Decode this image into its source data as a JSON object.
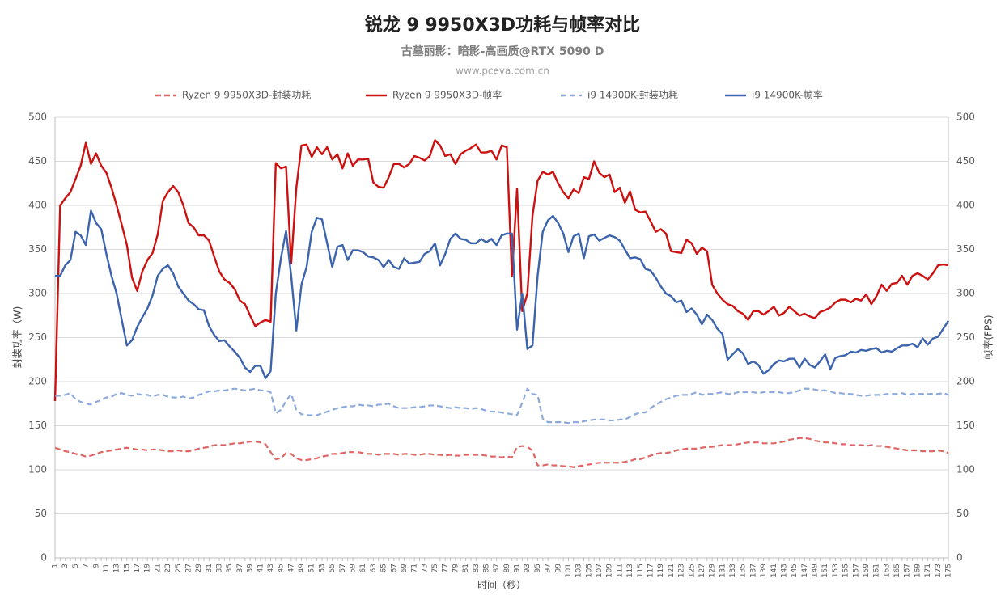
{
  "chart_data": {
    "type": "line",
    "title": "锐龙 9 9950X3D功耗与帧率对比",
    "subtitle": "古墓丽影：暗影-高画质@RTX 5090 D",
    "source": "www.pceva.com.cn",
    "x_label": "时间（秒）",
    "y_label": "封装功率（W)",
    "y2_label": "帧率(FPS)",
    "ylim": [
      0,
      500
    ],
    "yticks": [
      0,
      50,
      100,
      150,
      200,
      250,
      300,
      350,
      400,
      450,
      500
    ],
    "y2lim": [
      0,
      500
    ],
    "y2ticks": [
      0,
      50,
      100,
      150,
      200,
      250,
      300,
      350,
      400,
      450,
      500
    ],
    "grid": true,
    "legend": "top",
    "categories": [
      1,
      null,
      3,
      null,
      5,
      null,
      7,
      null,
      9,
      null,
      11,
      null,
      13,
      null,
      15,
      null,
      17,
      null,
      19,
      null,
      21,
      null,
      23,
      null,
      25,
      null,
      27,
      null,
      29,
      null,
      31,
      null,
      33,
      null,
      35,
      null,
      37,
      null,
      39,
      null,
      41,
      null,
      43,
      null,
      45,
      null,
      47,
      null,
      49,
      null,
      51,
      null,
      53,
      null,
      55,
      null,
      57,
      null,
      59,
      null,
      61,
      null,
      63,
      null,
      65,
      null,
      67,
      null,
      69,
      null,
      71,
      null,
      73,
      null,
      75,
      null,
      77,
      null,
      79,
      null,
      81,
      null,
      83,
      null,
      85,
      null,
      87,
      null,
      89,
      null,
      91,
      null,
      93,
      null,
      95,
      null,
      97,
      null,
      99,
      null,
      101,
      null,
      103,
      null,
      105,
      null,
      107,
      null,
      109,
      null,
      111,
      null,
      113,
      null,
      115,
      null,
      117,
      null,
      119,
      null,
      121,
      null,
      123,
      null,
      125,
      null,
      127,
      null,
      129,
      null,
      131,
      null,
      133,
      null,
      135,
      null,
      137,
      null,
      139,
      null,
      141,
      null,
      143,
      null,
      145,
      null,
      147,
      null,
      149,
      null,
      151,
      null,
      153,
      null,
      155,
      null,
      157,
      null,
      159,
      null,
      161,
      null,
      163,
      null,
      165,
      null,
      167,
      null,
      169,
      null,
      171,
      null,
      173,
      null,
      175
    ],
    "series": [
      {
        "name": "Ryzen 9 9950X3D-封装功耗",
        "color": "#e06666",
        "dashed": true,
        "axis": "y",
        "values": [
          125,
          123,
          121,
          120,
          118,
          117,
          115,
          116,
          118,
          120,
          121,
          122,
          123,
          124,
          125,
          124,
          123,
          123,
          122,
          123,
          123,
          122,
          121,
          121,
          122,
          121,
          121,
          122,
          124,
          125,
          126,
          128,
          128,
          128,
          129,
          130,
          130,
          131,
          132,
          132,
          131,
          129,
          120,
          112,
          113,
          119,
          118,
          113,
          111,
          111,
          112,
          113,
          115,
          116,
          118,
          118,
          119,
          120,
          120,
          120,
          119,
          118,
          118,
          117,
          118,
          118,
          118,
          117,
          118,
          118,
          117,
          117,
          118,
          118,
          117,
          117,
          116,
          117,
          116,
          116,
          117,
          117,
          117,
          117,
          116,
          115,
          115,
          114,
          115,
          114,
          126,
          127,
          126,
          122,
          105,
          105,
          106,
          105,
          105,
          104,
          104,
          103,
          104,
          105,
          106,
          107,
          108,
          108,
          108,
          108,
          108,
          109,
          110,
          112,
          112,
          114,
          116,
          118,
          119,
          119,
          120,
          122,
          123,
          124,
          124,
          124,
          125,
          126,
          126,
          127,
          128,
          128,
          128,
          129,
          130,
          131,
          131,
          131,
          130,
          130,
          130,
          131,
          132,
          134,
          135,
          136,
          136,
          135,
          133,
          132,
          131,
          131,
          130,
          129,
          129,
          128,
          128,
          128,
          127,
          128,
          127,
          127,
          126,
          125,
          124,
          123,
          122,
          122,
          122,
          121,
          121,
          121,
          122,
          121,
          119
        ]
      },
      {
        "name": "Ryzen 9 9950X3D-帧率",
        "color": "#cc1111",
        "dashed": false,
        "axis": "y2",
        "values": [
          178,
          400,
          408,
          415,
          430,
          445,
          471,
          447,
          459,
          445,
          437,
          420,
          400,
          378,
          355,
          318,
          303,
          325,
          338,
          346,
          367,
          405,
          415,
          422,
          415,
          400,
          380,
          375,
          366,
          366,
          360,
          342,
          325,
          316,
          312,
          305,
          292,
          288,
          275,
          263,
          267,
          270,
          268,
          448,
          442,
          444,
          334,
          420,
          468,
          469,
          455,
          466,
          458,
          466,
          452,
          458,
          442,
          459,
          445,
          452,
          452,
          453,
          426,
          421,
          420,
          432,
          447,
          447,
          443,
          447,
          456,
          454,
          451,
          456,
          474,
          468,
          456,
          458,
          447,
          458,
          462,
          465,
          469,
          460,
          460,
          462,
          452,
          468,
          466,
          320,
          419,
          280,
          300,
          388,
          428,
          438,
          435,
          438,
          425,
          415,
          408,
          418,
          414,
          432,
          430,
          450,
          437,
          432,
          435,
          415,
          420,
          403,
          416,
          395,
          392,
          393,
          382,
          370,
          373,
          368,
          348,
          347,
          346,
          361,
          357,
          345,
          352,
          348,
          310,
          300,
          293,
          288,
          286,
          280,
          277,
          270,
          280,
          280,
          276,
          280,
          285,
          275,
          278,
          285,
          280,
          275,
          277,
          274,
          272,
          279,
          281,
          284,
          290,
          293,
          293,
          290,
          294,
          292,
          299,
          288,
          297,
          310,
          303,
          311,
          312,
          320,
          310,
          320,
          323,
          320,
          316,
          323,
          332,
          333,
          332
        ]
      },
      {
        "name": "i9 14900K-封装功耗",
        "color": "#8eaadb",
        "dashed": true,
        "axis": "y",
        "values": [
          184,
          184,
          185,
          187,
          180,
          177,
          175,
          174,
          177,
          179,
          182,
          183,
          186,
          187,
          185,
          184,
          186,
          185,
          185,
          183,
          185,
          185,
          183,
          182,
          182,
          183,
          181,
          182,
          185,
          187,
          189,
          189,
          190,
          190,
          191,
          192,
          191,
          190,
          191,
          192,
          190,
          190,
          188,
          164,
          168,
          178,
          186,
          168,
          163,
          162,
          162,
          162,
          164,
          166,
          168,
          170,
          171,
          172,
          172,
          174,
          173,
          173,
          172,
          174,
          174,
          175,
          172,
          170,
          170,
          170,
          171,
          171,
          172,
          173,
          173,
          172,
          171,
          170,
          171,
          170,
          170,
          169,
          170,
          169,
          167,
          166,
          166,
          165,
          164,
          163,
          162,
          176,
          192,
          186,
          185,
          158,
          154,
          154,
          154,
          154,
          153,
          154,
          154,
          155,
          156,
          157,
          157,
          157,
          156,
          156,
          157,
          157,
          160,
          163,
          165,
          165,
          170,
          174,
          177,
          180,
          182,
          184,
          185,
          185,
          186,
          188,
          185,
          186,
          186,
          187,
          188,
          186,
          186,
          188,
          188,
          188,
          188,
          187,
          188,
          188,
          188,
          188,
          187,
          187,
          188,
          190,
          192,
          192,
          191,
          190,
          190,
          189,
          187,
          187,
          186,
          186,
          185,
          184,
          184,
          185,
          185,
          185,
          186,
          186,
          186,
          187,
          185,
          186,
          186,
          186,
          186,
          186,
          186,
          187,
          185
        ]
      },
      {
        "name": "i9 14900K-帧率",
        "color": "#3c64ad",
        "dashed": false,
        "axis": "y2",
        "values": [
          320,
          320,
          332,
          338,
          370,
          366,
          355,
          394,
          380,
          373,
          345,
          320,
          300,
          270,
          241,
          247,
          262,
          273,
          283,
          298,
          320,
          328,
          332,
          323,
          308,
          300,
          292,
          288,
          282,
          281,
          263,
          253,
          246,
          247,
          240,
          234,
          227,
          216,
          211,
          218,
          218,
          204,
          212,
          300,
          340,
          371,
          320,
          258,
          310,
          330,
          370,
          386,
          384,
          357,
          330,
          353,
          355,
          338,
          349,
          349,
          347,
          342,
          341,
          338,
          330,
          338,
          330,
          328,
          340,
          334,
          335,
          336,
          345,
          348,
          357,
          332,
          345,
          362,
          368,
          362,
          361,
          357,
          357,
          362,
          358,
          362,
          355,
          366,
          368,
          368,
          259,
          300,
          237,
          241,
          320,
          370,
          383,
          388,
          380,
          368,
          347,
          365,
          368,
          340,
          365,
          367,
          360,
          363,
          366,
          364,
          360,
          350,
          340,
          341,
          339,
          328,
          326,
          318,
          308,
          300,
          297,
          290,
          292,
          279,
          283,
          276,
          265,
          276,
          270,
          260,
          254,
          225,
          231,
          237,
          232,
          220,
          223,
          219,
          209,
          213,
          220,
          224,
          223,
          226,
          226,
          216,
          226,
          219,
          216,
          223,
          231,
          214,
          227,
          229,
          230,
          234,
          233,
          236,
          235,
          237,
          238,
          233,
          235,
          234,
          238,
          241,
          241,
          243,
          239,
          249,
          242,
          249,
          251,
          260,
          269
        ]
      }
    ]
  }
}
